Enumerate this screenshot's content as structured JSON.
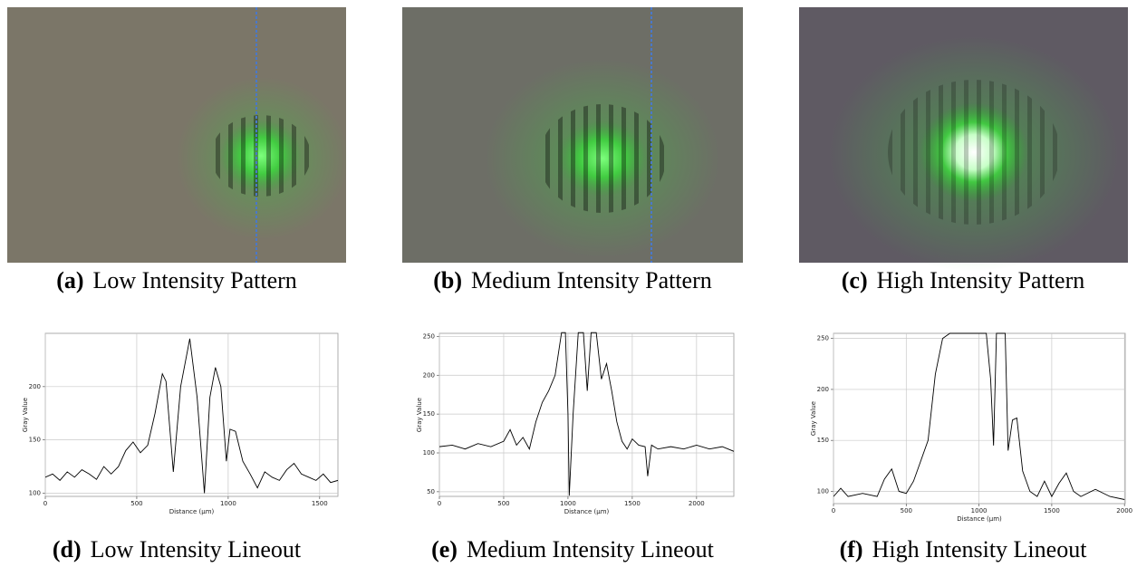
{
  "figure": {
    "panels": [
      {
        "label": "(a)",
        "text": "Low Intensity Pattern"
      },
      {
        "label": "(b)",
        "text": "Medium Intensity Pattern"
      },
      {
        "label": "(c)",
        "text": "High Intensity Pattern"
      },
      {
        "label": "(d)",
        "text": "Low Intensity Lineout"
      },
      {
        "label": "(e)",
        "text": "Medium Intensity Lineout"
      },
      {
        "label": "(f)",
        "text": "High Intensity Lineout"
      }
    ]
  },
  "chart_data": [
    {
      "type": "line",
      "x_label": "Distance (µm)",
      "y_label": "Gray Value",
      "grid": true,
      "xlim": [
        0,
        1600
      ],
      "xticks": [
        0,
        500,
        1000,
        1500
      ],
      "ylim": [
        97,
        250
      ],
      "yticks": [
        100,
        150,
        200
      ],
      "x": [
        0,
        40,
        80,
        120,
        160,
        200,
        240,
        280,
        320,
        360,
        400,
        440,
        480,
        520,
        560,
        600,
        640,
        660,
        700,
        740,
        790,
        830,
        870,
        900,
        930,
        960,
        990,
        1010,
        1040,
        1080,
        1120,
        1160,
        1200,
        1240,
        1280,
        1320,
        1360,
        1400,
        1440,
        1480,
        1520,
        1560,
        1600
      ],
      "series": [
        {
          "color": "#000000",
          "values": [
            115,
            118,
            112,
            120,
            115,
            122,
            118,
            113,
            125,
            118,
            125,
            140,
            148,
            138,
            145,
            175,
            212,
            205,
            120,
            200,
            245,
            190,
            100,
            190,
            218,
            200,
            130,
            160,
            158,
            130,
            118,
            105,
            120,
            115,
            112,
            122,
            128,
            118,
            115,
            112,
            118,
            110,
            112
          ]
        }
      ]
    },
    {
      "type": "line",
      "x_label": "Distance (µm)",
      "y_label": "Gray Value",
      "grid": true,
      "xlim": [
        0,
        2290
      ],
      "xticks": [
        0,
        500,
        1000,
        1500,
        2000
      ],
      "ylim": [
        44,
        254
      ],
      "yticks": [
        50,
        100,
        150,
        200,
        250
      ],
      "x": [
        0,
        100,
        200,
        300,
        400,
        500,
        550,
        600,
        650,
        700,
        750,
        800,
        850,
        900,
        950,
        980,
        1000,
        1010,
        1040,
        1080,
        1120,
        1150,
        1180,
        1220,
        1260,
        1300,
        1340,
        1380,
        1420,
        1460,
        1500,
        1550,
        1600,
        1620,
        1650,
        1700,
        1800,
        1900,
        2000,
        2100,
        2200,
        2290
      ],
      "series": [
        {
          "color": "#000000",
          "values": [
            108,
            110,
            105,
            112,
            108,
            115,
            130,
            110,
            120,
            105,
            140,
            165,
            180,
            200,
            255,
            255,
            150,
            45,
            150,
            255,
            255,
            180,
            255,
            255,
            195,
            215,
            180,
            140,
            115,
            105,
            118,
            110,
            108,
            70,
            110,
            105,
            108,
            105,
            110,
            105,
            108,
            102
          ]
        }
      ]
    },
    {
      "type": "line",
      "x_label": "Distance (µm)",
      "y_label": "Gray Value",
      "grid": true,
      "xlim": [
        0,
        2005
      ],
      "xticks": [
        0,
        500,
        1000,
        1500,
        2000
      ],
      "ylim": [
        88,
        255
      ],
      "yticks": [
        100,
        150,
        200,
        250
      ],
      "x": [
        0,
        50,
        100,
        200,
        300,
        350,
        400,
        450,
        500,
        550,
        600,
        650,
        700,
        750,
        800,
        900,
        1000,
        1050,
        1080,
        1100,
        1120,
        1150,
        1180,
        1200,
        1230,
        1260,
        1300,
        1350,
        1400,
        1450,
        1500,
        1550,
        1600,
        1650,
        1700,
        1800,
        1900,
        2000
      ],
      "series": [
        {
          "color": "#000000",
          "values": [
            95,
            103,
            95,
            98,
            95,
            112,
            122,
            100,
            98,
            110,
            130,
            150,
            215,
            250,
            255,
            255,
            255,
            255,
            210,
            145,
            255,
            255,
            255,
            140,
            170,
            172,
            120,
            100,
            95,
            110,
            95,
            108,
            118,
            100,
            95,
            102,
            95,
            92
          ]
        }
      ]
    }
  ]
}
